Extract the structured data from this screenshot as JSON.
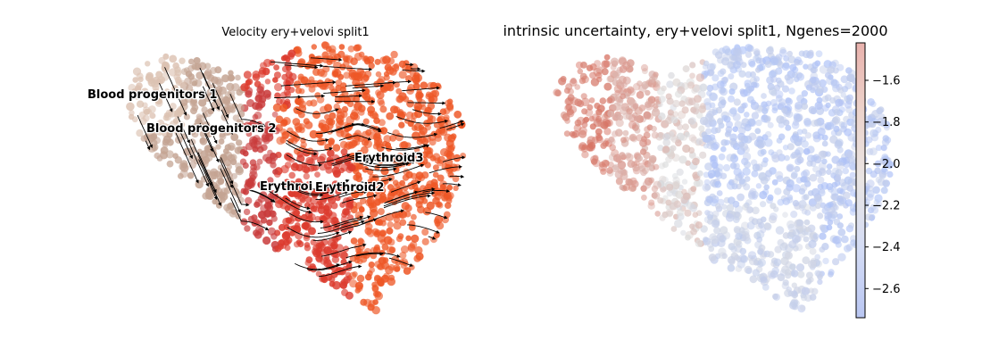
{
  "chart_data": [
    {
      "type": "scatter",
      "subtype": "umap-velocity-stream",
      "title": "Velocity ery+velovi split1",
      "axes_visible": false,
      "clusters": [
        {
          "name": "Blood progenitors 1",
          "color": "#dcc2b2"
        },
        {
          "name": "Blood progenitors 2",
          "color": "#c4a493"
        },
        {
          "name": "Erythroid1",
          "color": "#c93c3c"
        },
        {
          "name": "Erythroid2",
          "color": "#dc3b2e"
        },
        {
          "name": "Erythroid3",
          "color": "#ee5726"
        }
      ],
      "labels_shown": [
        "Blood progenitors 1",
        "Blood progenitors 2",
        "Erythroi",
        "Erythroid2",
        "Erythroid3"
      ],
      "streamlines": {
        "color": "#000000",
        "arrows": true
      }
    },
    {
      "type": "scatter",
      "subtype": "umap-continuous",
      "title": "intrinsic uncertainty, ery+velovi split1, Ngenes=2000",
      "axes_visible": false,
      "colormap": "coolwarm",
      "colorbar": {
        "min": -2.74,
        "max": -1.42,
        "ticks": [
          -1.6,
          -1.8,
          -2.0,
          -2.2,
          -2.4,
          -2.6
        ],
        "tick_labels": [
          "−1.6",
          "−1.8",
          "−2.0",
          "−2.2",
          "−2.4",
          "−2.6"
        ]
      }
    }
  ]
}
